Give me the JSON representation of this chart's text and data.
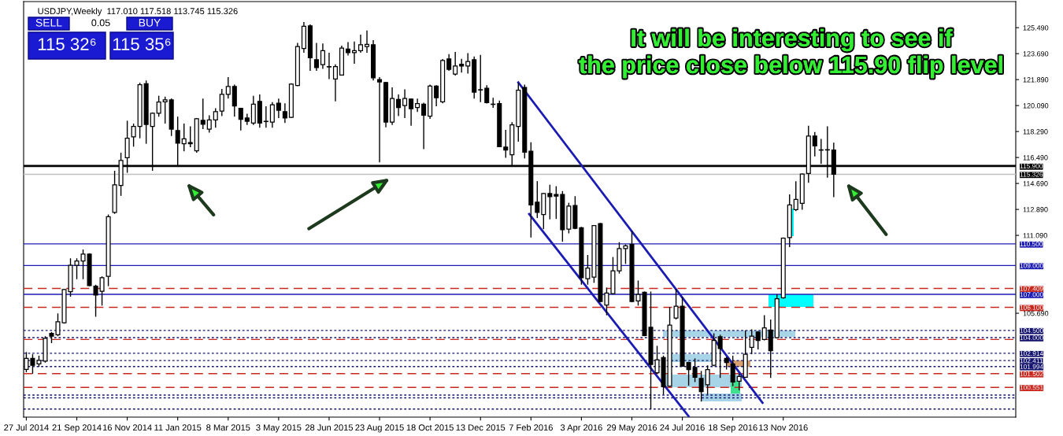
{
  "chart_data": {
    "type": "candlestick",
    "title": "USDJPY,Weekly  117.010 117.518 113.745 115.326",
    "annotations": [
      "It will be interesting to see if\nthe price close below 115.90 flip level",
      "SELL",
      "0.05",
      "BUY",
      "115 32⁶",
      "115 35⁶"
    ],
    "color": "#000000",
    "x": [
      "2014-07-27",
      "2014-08-03",
      "2014-08-10",
      "2014-08-17",
      "2014-08-24",
      "2014-08-31",
      "2014-09-07",
      "2014-09-14",
      "2014-09-21",
      "2014-09-28",
      "2014-10-05",
      "2014-10-12",
      "2014-10-19",
      "2014-10-26",
      "2014-11-02",
      "2014-11-09",
      "2014-11-16",
      "2014-11-23",
      "2014-11-30",
      "2014-12-07",
      "2014-12-14",
      "2014-12-21",
      "2014-12-28",
      "2015-01-04",
      "2015-01-11",
      "2015-01-18",
      "2015-01-25",
      "2015-02-01",
      "2015-02-08",
      "2015-02-15",
      "2015-02-22",
      "2015-03-01",
      "2015-03-08",
      "2015-03-15",
      "2015-03-22",
      "2015-03-29",
      "2015-04-05",
      "2015-04-12",
      "2015-04-19",
      "2015-04-26",
      "2015-05-03",
      "2015-05-10",
      "2015-05-17",
      "2015-05-24",
      "2015-05-31",
      "2015-06-07",
      "2015-06-14",
      "2015-06-21",
      "2015-06-28",
      "2015-07-05",
      "2015-07-12",
      "2015-07-19",
      "2015-07-26",
      "2015-08-02",
      "2015-08-09",
      "2015-08-16",
      "2015-08-23",
      "2015-08-30",
      "2015-09-06",
      "2015-09-13",
      "2015-09-20",
      "2015-09-27",
      "2015-10-04",
      "2015-10-11",
      "2015-10-18",
      "2015-10-25",
      "2015-11-01",
      "2015-11-08",
      "2015-11-15",
      "2015-11-22",
      "2015-11-29",
      "2015-12-06",
      "2015-12-13",
      "2015-12-20",
      "2015-12-27",
      "2016-01-03",
      "2016-01-10",
      "2016-01-17",
      "2016-01-24",
      "2016-01-31",
      "2016-02-07",
      "2016-02-14",
      "2016-02-21",
      "2016-02-28",
      "2016-03-06",
      "2016-03-13",
      "2016-03-20",
      "2016-03-27",
      "2016-04-03",
      "2016-04-10",
      "2016-04-17",
      "2016-04-24",
      "2016-05-01",
      "2016-05-08",
      "2016-05-15",
      "2016-05-22",
      "2016-05-29",
      "2016-06-05",
      "2016-06-12",
      "2016-06-19",
      "2016-06-26",
      "2016-07-03",
      "2016-07-10",
      "2016-07-17",
      "2016-07-24",
      "2016-07-31",
      "2016-08-07",
      "2016-08-14",
      "2016-08-21",
      "2016-08-28",
      "2016-09-04",
      "2016-09-11",
      "2016-09-18",
      "2016-09-25",
      "2016-10-02",
      "2016-10-09",
      "2016-10-16",
      "2016-10-23",
      "2016-10-30",
      "2016-11-06",
      "2016-11-13",
      "2016-11-20",
      "2016-11-27",
      "2016-12-04",
      "2016-12-11",
      "2016-12-18",
      "2016-12-25",
      "2017-01-01",
      "2017-01-08"
    ],
    "ohlc": [
      [
        101.8,
        103.0,
        101.6,
        102.56
      ],
      [
        102.56,
        102.85,
        101.5,
        102.08
      ],
      [
        102.18,
        102.75,
        101.98,
        102.43
      ],
      [
        102.37,
        104.1,
        102.27,
        103.95
      ],
      [
        104.3,
        104.39,
        103.62,
        104.1
      ],
      [
        104.2,
        105.68,
        104.1,
        105.1
      ],
      [
        105.03,
        107.38,
        104.97,
        107.34
      ],
      [
        107.19,
        109.5,
        106.84,
        109.02
      ],
      [
        109.02,
        109.5,
        108.05,
        109.31
      ],
      [
        109.31,
        110.11,
        108.05,
        109.79
      ],
      [
        109.79,
        109.85,
        107.57,
        107.61
      ],
      [
        107.57,
        107.67,
        105.45,
        106.95
      ],
      [
        107.22,
        108.25,
        106.22,
        108.15
      ],
      [
        108.25,
        112.54,
        107.57,
        112.39
      ],
      [
        112.68,
        115.57,
        112.58,
        114.6
      ],
      [
        114.55,
        116.82,
        113.83,
        116.28
      ],
      [
        116.47,
        119.04,
        115.43,
        117.82
      ],
      [
        117.92,
        118.84,
        117.24,
        118.65
      ],
      [
        118.65,
        121.67,
        117.82,
        121.54
      ],
      [
        121.6,
        121.83,
        117.44,
        118.78
      ],
      [
        118.65,
        119.61,
        115.57,
        119.56
      ],
      [
        119.56,
        120.77,
        119.32,
        120.33
      ],
      [
        120.35,
        120.71,
        118.84,
        120.48
      ],
      [
        120.48,
        120.58,
        117.98,
        118.46
      ],
      [
        118.36,
        119.32,
        115.89,
        117.49
      ],
      [
        117.44,
        118.84,
        116.92,
        117.78
      ],
      [
        117.53,
        118.65,
        117.21,
        117.45
      ],
      [
        116.95,
        119.23,
        116.82,
        119.17
      ],
      [
        119.07,
        120.58,
        118.46,
        118.8
      ],
      [
        118.46,
        119.42,
        118.21,
        119.09
      ],
      [
        119.09,
        119.9,
        118.55,
        119.67
      ],
      [
        119.71,
        121.25,
        119.36,
        120.87
      ],
      [
        120.87,
        122.06,
        120.58,
        121.41
      ],
      [
        121.41,
        121.54,
        119.32,
        120.06
      ],
      [
        119.9,
        119.94,
        118.36,
        119.13
      ],
      [
        119.23,
        119.52,
        118.75,
        119.0
      ],
      [
        118.88,
        120.77,
        118.75,
        120.19
      ],
      [
        120.38,
        120.86,
        118.55,
        118.88
      ],
      [
        119.0,
        120.04,
        118.55,
        118.98
      ],
      [
        118.94,
        120.33,
        118.55,
        120.15
      ],
      [
        120.25,
        120.58,
        119.23,
        119.77
      ],
      [
        119.67,
        120.25,
        118.88,
        119.23
      ],
      [
        119.27,
        121.64,
        119.23,
        121.58
      ],
      [
        121.48,
        124.43,
        121.44,
        124.18
      ],
      [
        124.04,
        125.88,
        123.76,
        125.59
      ],
      [
        125.62,
        125.72,
        122.5,
        123.41
      ],
      [
        123.27,
        124.43,
        122.5,
        122.73
      ],
      [
        122.93,
        124.39,
        122.64,
        123.89
      ],
      [
        122.79,
        123.76,
        121.93,
        122.77
      ],
      [
        121.93,
        122.95,
        120.38,
        122.79
      ],
      [
        122.21,
        124.24,
        122.17,
        124.08
      ],
      [
        124.0,
        124.49,
        123.56,
        123.76
      ],
      [
        123.76,
        124.53,
        122.99,
        123.89
      ],
      [
        123.89,
        125.01,
        123.76,
        124.3
      ],
      [
        124.18,
        125.3,
        123.76,
        124.33
      ],
      [
        124.3,
        124.62,
        121.83,
        122.02
      ],
      [
        121.89,
        122.06,
        116.15,
        121.73
      ],
      [
        121.69,
        121.73,
        118.59,
        118.94
      ],
      [
        118.94,
        121.35,
        118.75,
        120.58
      ],
      [
        120.52,
        120.86,
        119.36,
        119.96
      ],
      [
        120.09,
        121.21,
        119.23,
        120.58
      ],
      [
        120.54,
        120.58,
        118.69,
        119.87
      ],
      [
        119.96,
        120.58,
        119.65,
        120.23
      ],
      [
        120.19,
        120.29,
        117.07,
        119.42
      ],
      [
        119.36,
        121.54,
        119.17,
        121.44
      ],
      [
        121.44,
        121.5,
        120.04,
        120.63
      ],
      [
        120.35,
        123.31,
        120.25,
        123.22
      ],
      [
        123.33,
        123.66,
        122.5,
        122.6
      ],
      [
        122.27,
        123.81,
        122.17,
        122.83
      ],
      [
        122.95,
        123.33,
        122.37,
        122.83
      ],
      [
        122.83,
        123.72,
        122.31,
        123.14
      ],
      [
        123.27,
        123.5,
        120.58,
        121.02
      ],
      [
        121.19,
        123.6,
        120.33,
        121.17
      ],
      [
        121.29,
        121.5,
        120.23,
        120.29
      ],
      [
        120.19,
        120.63,
        119.94,
        120.17
      ],
      [
        120.23,
        120.44,
        117.21,
        117.24
      ],
      [
        117.21,
        118.4,
        116.47,
        117.01
      ],
      [
        116.68,
        118.94,
        115.95,
        118.75
      ],
      [
        118.65,
        121.67,
        117.59,
        121.15
      ],
      [
        121.35,
        121.54,
        116.43,
        116.86
      ],
      [
        116.92,
        117.55,
        110.94,
        113.2
      ],
      [
        113.39,
        114.85,
        112.29,
        112.68
      ],
      [
        112.54,
        114.03,
        111.52,
        113.99
      ],
      [
        113.99,
        114.6,
        112.2,
        113.78
      ],
      [
        113.93,
        114.5,
        112.23,
        113.81
      ],
      [
        113.93,
        114.16,
        110.65,
        111.48
      ],
      [
        111.52,
        113.35,
        111.23,
        113.12
      ],
      [
        113.16,
        113.81,
        111.52,
        111.58
      ],
      [
        111.62,
        111.68,
        107.67,
        108.15
      ],
      [
        108.09,
        109.73,
        107.67,
        108.82
      ],
      [
        108.19,
        111.81,
        107.8,
        111.77
      ],
      [
        111.91,
        111.95,
        106.45,
        106.51
      ],
      [
        106.26,
        107.47,
        105.55,
        107.09
      ],
      [
        107.05,
        109.59,
        107.0,
        108.63
      ],
      [
        108.63,
        110.62,
        108.44,
        110.17
      ],
      [
        110.17,
        110.46,
        109.11,
        110.36
      ],
      [
        110.46,
        111.39,
        106.45,
        106.51
      ],
      [
        106.55,
        107.96,
        106.22,
        107.0
      ],
      [
        107.14,
        107.2,
        104.1,
        104.14
      ],
      [
        104.72,
        107.2,
        99.05,
        102.14
      ],
      [
        101.56,
        103.43,
        101.5,
        102.46
      ],
      [
        102.62,
        102.75,
        100.06,
        100.6
      ],
      [
        100.64,
        106.13,
        100.6,
        104.87
      ],
      [
        105.36,
        107.38,
        105.26,
        106.18
      ],
      [
        106.18,
        106.8,
        101.98,
        102.02
      ],
      [
        102.27,
        102.33,
        100.67,
        101.79
      ],
      [
        101.94,
        102.56,
        100.92,
        101.25
      ],
      [
        101.17,
        101.69,
        99.57,
        100.25
      ],
      [
        100.73,
        102.08,
        100.06,
        101.79
      ],
      [
        102.08,
        104.3,
        102.02,
        103.81
      ],
      [
        104.06,
        104.2,
        101.21,
        103.24
      ],
      [
        102.56,
        102.66,
        101.79,
        102.27
      ],
      [
        102.18,
        102.75,
        100.64,
        100.92
      ],
      [
        100.98,
        101.5,
        100.35,
        101.31
      ],
      [
        101.25,
        104.49,
        101.21,
        102.85
      ],
      [
        103.33,
        104.58,
        102.85,
        104.1
      ],
      [
        104.39,
        104.45,
        103.18,
        103.81
      ],
      [
        103.87,
        105.55,
        103.81,
        104.68
      ],
      [
        104.53,
        105.26,
        101.21,
        103.1
      ],
      [
        104.0,
        107.0,
        103.95,
        106.7
      ],
      [
        106.76,
        110.94,
        106.7,
        110.89
      ],
      [
        110.94,
        113.93,
        110.27,
        113.2
      ],
      [
        112.87,
        114.85,
        112.77,
        113.58
      ],
      [
        113.31,
        115.38,
        112.87,
        115.34
      ],
      [
        115.38,
        118.69,
        114.74,
        117.98
      ],
      [
        117.98,
        118.26,
        116.57,
        117.3
      ],
      [
        117.01,
        117.78,
        116.05,
        117.0
      ],
      [
        117.01,
        118.65,
        115.09,
        117.02
      ],
      [
        117.01,
        117.518,
        113.745,
        115.326
      ]
    ],
    "series": [
      {
        "type": "line",
        "color": "#1c1cb4",
        "x": [
          "2016-01-24",
          "2016-10-21"
        ],
        "values": [
          121.69,
          99.48
        ]
      },
      {
        "type": "line",
        "color": "#1c1cb4",
        "x": [
          "2016-02-05",
          "2016-07-31"
        ],
        "values": [
          112.57,
          98.55
        ]
      }
    ],
    "xlim": [
      "2014-07-24",
      "2017-07-29"
    ],
    "xticks": [
      {
        "value": "2014-07-27",
        "label": "27 Jul 2014"
      },
      {
        "value": "2014-09-21",
        "label": "21 Sep 2014"
      },
      {
        "value": "2014-11-16",
        "label": "16 Nov 2014"
      },
      {
        "value": "2015-01-11",
        "label": "11 Jan 2015"
      },
      {
        "value": "2015-03-08",
        "label": "8 Mar 2015"
      },
      {
        "value": "2015-05-03",
        "label": "3 May 2015"
      },
      {
        "value": "2015-06-28",
        "label": "28 Jun 2015"
      },
      {
        "value": "2015-08-23",
        "label": "23 Aug 2015"
      },
      {
        "value": "2015-10-18",
        "label": "18 Oct 2015"
      },
      {
        "value": "2015-12-13",
        "label": "13 Dec 2015"
      },
      {
        "value": "2016-02-07",
        "label": "7 Feb 2016"
      },
      {
        "value": "2016-04-03",
        "label": "3 Apr 2016"
      },
      {
        "value": "2016-05-29",
        "label": "29 May 2016"
      },
      {
        "value": "2016-07-24",
        "label": "24 Jul 2016"
      },
      {
        "value": "2016-09-18",
        "label": "18 Sep 2016"
      },
      {
        "value": "2016-11-13",
        "label": "13 Nov 2016"
      }
    ],
    "ylim": [
      98.49,
      127.3
    ],
    "yticks": [
      {
        "value": 125.49,
        "label": "125.490"
      },
      {
        "value": 123.69,
        "label": "123.690"
      },
      {
        "value": 121.89,
        "label": "121.890"
      },
      {
        "value": 120.09,
        "label": "120.090"
      },
      {
        "value": 118.29,
        "label": "118.290"
      },
      {
        "value": 116.49,
        "label": "116.490"
      },
      {
        "value": 114.69,
        "label": "114.690"
      },
      {
        "value": 112.89,
        "label": "112.890"
      },
      {
        "value": 111.09,
        "label": "111.090"
      },
      {
        "value": 105.69,
        "label": "105.690"
      }
    ],
    "ref_lines": [
      {
        "axis": "y",
        "value": 115.9,
        "label": "115.900",
        "color": "#000000",
        "line_style": "solid"
      },
      {
        "axis": "y",
        "value": 115.326,
        "label": "115.326",
        "color": "#c0c0c0",
        "line_style": "solid"
      },
      {
        "axis": "y",
        "value": 110.5,
        "label": "110.500",
        "color": "#1c1cb4",
        "line_style": "solid"
      },
      {
        "axis": "y",
        "value": 109.0,
        "label": "109.000",
        "color": "#1c1cb4",
        "line_style": "solid"
      },
      {
        "axis": "y",
        "value": 107.409,
        "label": "107.409",
        "color": "#c8281e",
        "line_style": "dashed"
      },
      {
        "axis": "y",
        "value": 107.0,
        "label": "107.000",
        "color": "#1c1cb4",
        "line_style": "solid"
      },
      {
        "axis": "y",
        "value": 106.1,
        "label": "106.100",
        "color": "#c8281e",
        "line_style": "dashed"
      },
      {
        "axis": "y",
        "value": 104.5,
        "label": "104.500",
        "color": "#14146e",
        "line_style": "dotted"
      },
      {
        "axis": "y",
        "value": 104.0,
        "label": "104.000",
        "color": "#14146e",
        "line_style": "dotted"
      },
      {
        "axis": "y",
        "value": 103.87,
        "label": null,
        "color": "#c8281e",
        "line_style": "dashed"
      },
      {
        "axis": "y",
        "value": 102.914,
        "label": "102.914",
        "color": "#14146e",
        "line_style": "dotted"
      },
      {
        "axis": "y",
        "value": 102.411,
        "label": "102.411",
        "color": "#14146e",
        "line_style": "dotted"
      },
      {
        "axis": "y",
        "value": 101.994,
        "label": "101.994",
        "color": "#14146e",
        "line_style": "dotted"
      },
      {
        "axis": "y",
        "value": 101.502,
        "label": "101.502",
        "color": "#c8281e",
        "line_style": "dashed"
      },
      {
        "axis": "y",
        "value": 100.551,
        "label": "100.551",
        "color": "#c8281e",
        "line_style": "dashed"
      },
      {
        "axis": "y",
        "value": 100.02,
        "label": null,
        "color": "#14146e",
        "line_style": "dotted"
      },
      {
        "axis": "y",
        "value": 99.83,
        "label": null,
        "color": "#14146e",
        "line_style": "dotted"
      },
      {
        "axis": "y",
        "value": 99.05,
        "label": null,
        "color": "#14146e",
        "line_style": "dotted"
      }
    ]
  }
}
